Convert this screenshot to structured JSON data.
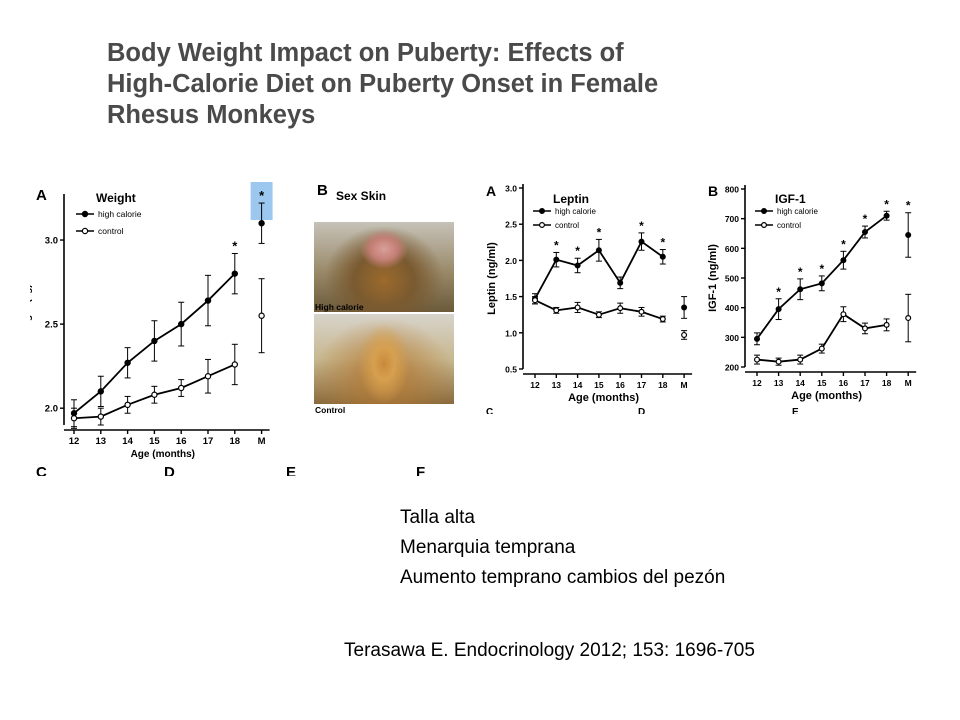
{
  "slide": {
    "title_lines": [
      "Body Weight Impact on Puberty: Effects of",
      "High-Calorie Diet on Puberty Onset in Female",
      "Rhesus Monkeys"
    ],
    "bullets": [
      "Talla alta",
      "Menarquia temprana",
      "Aumento temprano cambios del pezón"
    ],
    "citation": "Terasawa E. Endocrinology 2012; 153: 1696-705",
    "colors": {
      "title": "#4a4a4a",
      "highlight": "#9cc8f0",
      "series": "#000000"
    }
  },
  "figure_left": {
    "panel_b": {
      "letter": "B",
      "title": "Sex Skin",
      "photo_labels": [
        "High calorie",
        "Control"
      ]
    },
    "bottom_panel_letters": [
      "C",
      "D",
      "E",
      "F"
    ]
  },
  "figure_right": {
    "bottom_panel_labels": [
      "C",
      "D",
      "E"
    ]
  },
  "chart_data": [
    {
      "id": "weight",
      "type": "line",
      "panel_letter": "A",
      "title": "Weight",
      "xlabel": "Age (months)",
      "ylabel": "Weight (kg)",
      "categories": [
        "12",
        "13",
        "14",
        "15",
        "16",
        "17",
        "18",
        "M"
      ],
      "ylim": [
        1.9,
        3.25
      ],
      "yticks": [
        2.0,
        2.5,
        3.0
      ],
      "ytick_labels": [
        "2.0",
        "2.5",
        "3.0"
      ],
      "legend_position": "top-left",
      "series": [
        {
          "name": "high calorie",
          "marker": "filled",
          "values": [
            1.97,
            2.1,
            2.27,
            2.4,
            2.5,
            2.64,
            2.8,
            3.1
          ],
          "errors": [
            0.08,
            0.09,
            0.09,
            0.12,
            0.13,
            0.15,
            0.12,
            0.12
          ],
          "connect_last": false
        },
        {
          "name": "control",
          "marker": "open",
          "values": [
            1.94,
            1.95,
            2.02,
            2.08,
            2.12,
            2.19,
            2.26,
            2.55
          ],
          "errors": [
            0.06,
            0.05,
            0.05,
            0.05,
            0.05,
            0.1,
            0.12,
            0.22
          ],
          "connect_last": false
        }
      ],
      "significance": [
        {
          "category": "18",
          "label": "*"
        },
        {
          "category": "M",
          "label": "*",
          "highlighted": true
        }
      ]
    },
    {
      "id": "leptin",
      "type": "line",
      "panel_letter": "A",
      "title": "Leptin",
      "xlabel": "Age (months)",
      "ylabel": "Leptin (ng/ml)",
      "categories": [
        "12",
        "13",
        "14",
        "15",
        "16",
        "17",
        "18",
        "M"
      ],
      "ylim": [
        0.5,
        3.0
      ],
      "yticks": [
        0.5,
        1.0,
        1.5,
        2.0,
        2.5,
        3.0
      ],
      "ytick_labels": [
        "0.5",
        "1.0",
        "1.5",
        "2.0",
        "2.5",
        "3.0"
      ],
      "legend_position": "top-left",
      "series": [
        {
          "name": "high calorie",
          "marker": "filled",
          "values": [
            1.47,
            2.01,
            1.93,
            2.14,
            1.69,
            2.26,
            2.05,
            1.35
          ],
          "errors": [
            0.07,
            0.1,
            0.1,
            0.15,
            0.08,
            0.12,
            0.1,
            0.15
          ],
          "connect_last": false
        },
        {
          "name": "control",
          "marker": "open",
          "values": [
            1.45,
            1.31,
            1.35,
            1.25,
            1.34,
            1.29,
            1.19,
            0.97
          ],
          "errors": [
            0.05,
            0.04,
            0.07,
            0.04,
            0.07,
            0.06,
            0.04,
            0.06
          ],
          "connect_last": false
        }
      ],
      "significance": [
        {
          "category": "13",
          "label": "*"
        },
        {
          "category": "14",
          "label": "*"
        },
        {
          "category": "15",
          "label": "*"
        },
        {
          "category": "17",
          "label": "*"
        },
        {
          "category": "18",
          "label": "*"
        }
      ]
    },
    {
      "id": "igf1",
      "type": "line",
      "panel_letter": "B",
      "title": "IGF-1",
      "xlabel": "Age (months)",
      "ylabel": "IGF-1 (ng/ml)",
      "categories": [
        "12",
        "13",
        "14",
        "15",
        "16",
        "17",
        "18",
        "M"
      ],
      "ylim": [
        200,
        800
      ],
      "yticks": [
        200,
        300,
        400,
        500,
        600,
        700,
        800
      ],
      "ytick_labels": [
        "200",
        "300",
        "400",
        "500",
        "600",
        "700",
        "800"
      ],
      "legend_position": "top-left",
      "series": [
        {
          "name": "high calorie",
          "marker": "filled",
          "values": [
            295,
            395,
            462,
            482,
            560,
            655,
            710,
            645
          ],
          "errors": [
            20,
            35,
            35,
            25,
            30,
            20,
            15,
            75
          ],
          "connect_last": false
        },
        {
          "name": "control",
          "marker": "open",
          "values": [
            225,
            218,
            225,
            262,
            378,
            330,
            342,
            365
          ],
          "errors": [
            15,
            12,
            15,
            15,
            25,
            18,
            20,
            80
          ],
          "connect_last": false
        }
      ],
      "significance": [
        {
          "category": "13",
          "label": "*"
        },
        {
          "category": "14",
          "label": "*"
        },
        {
          "category": "15",
          "label": "*"
        },
        {
          "category": "16",
          "label": "*"
        },
        {
          "category": "17",
          "label": "*"
        },
        {
          "category": "18",
          "label": "*"
        },
        {
          "category": "M",
          "label": "*"
        }
      ]
    }
  ]
}
